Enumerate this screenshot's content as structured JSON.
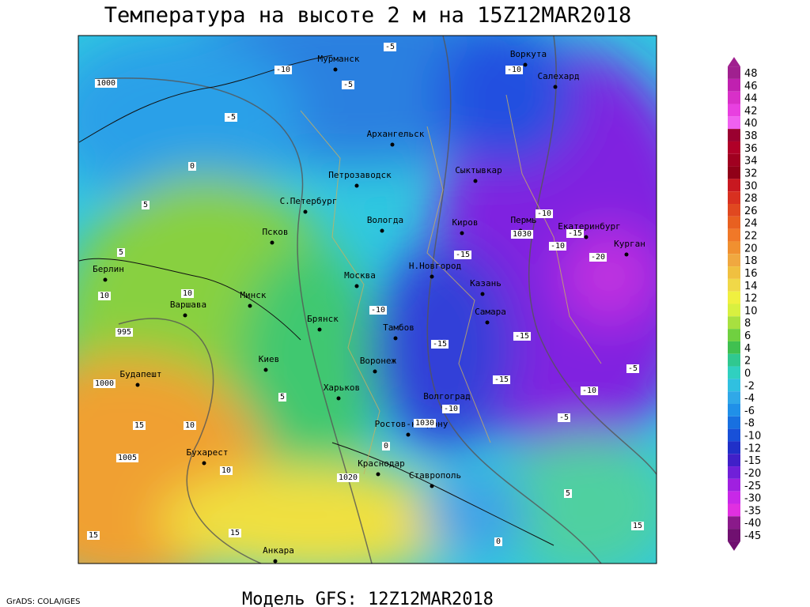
{
  "title": "Температура на высоте 2 м на 15Z12MAR2018",
  "footer": "Модель GFS: 12Z12MAR2018",
  "credit": "GrADS: COLA/IGES",
  "legend": {
    "labels": [
      48,
      46,
      44,
      42,
      40,
      38,
      36,
      34,
      32,
      30,
      28,
      26,
      24,
      22,
      20,
      18,
      16,
      14,
      12,
      10,
      8,
      6,
      4,
      2,
      0,
      -2,
      -4,
      -6,
      -8,
      -10,
      -12,
      -15,
      -20,
      -25,
      -30,
      -35,
      -40,
      -45
    ],
    "colors": [
      "#a0208f",
      "#c020b0",
      "#d830c8",
      "#e840e0",
      "#f060f0",
      "#9a0030",
      "#b00028",
      "#a00020",
      "#900018",
      "#c81820",
      "#d83020",
      "#e04820",
      "#e86020",
      "#f07828",
      "#f09030",
      "#f0a840",
      "#f0c040",
      "#f0d848",
      "#f0f040",
      "#d8f040",
      "#a8e040",
      "#70d040",
      "#40c050",
      "#30c890",
      "#30d0c0",
      "#30c0e0",
      "#30a8e8",
      "#2090e8",
      "#1870e0",
      "#1850d8",
      "#2030c8",
      "#4020c8",
      "#7020d8",
      "#a020e0",
      "#c828e8",
      "#e030e0",
      "#8a1a8a",
      "#701070"
    ]
  },
  "cities": [
    "Мурманск",
    "Воркута",
    "Салехард",
    "Архангельск",
    "Сыктывкар",
    "Петрозаводск",
    "С.Петербург",
    "Вологда",
    "Киров",
    "Пермь",
    "Екатеринбург",
    "Курган",
    "Псков",
    "Берлин",
    "Москва",
    "Н.Новгород",
    "Казань",
    "Варшава",
    "Минск",
    "Брянск",
    "Самара",
    "Тамбов",
    "Киев",
    "Воронеж",
    "Будапешт",
    "Харьков",
    "Волгоград",
    "Ростов-на-Дону",
    "Бухарест",
    "Краснодар",
    "Ставрополь",
    "Анкара"
  ],
  "contour_labels": [
    -5,
    -10,
    -5,
    -5,
    -10,
    -10,
    -15,
    -10,
    -20,
    -15,
    -10,
    -15,
    -15,
    -15,
    -10,
    -5,
    -5,
    -10,
    0,
    5,
    5,
    10,
    10,
    995,
    1000,
    1000,
    1030,
    1030,
    1005,
    1020,
    15,
    10,
    10,
    15,
    15,
    5,
    5,
    15,
    0,
    0
  ]
}
